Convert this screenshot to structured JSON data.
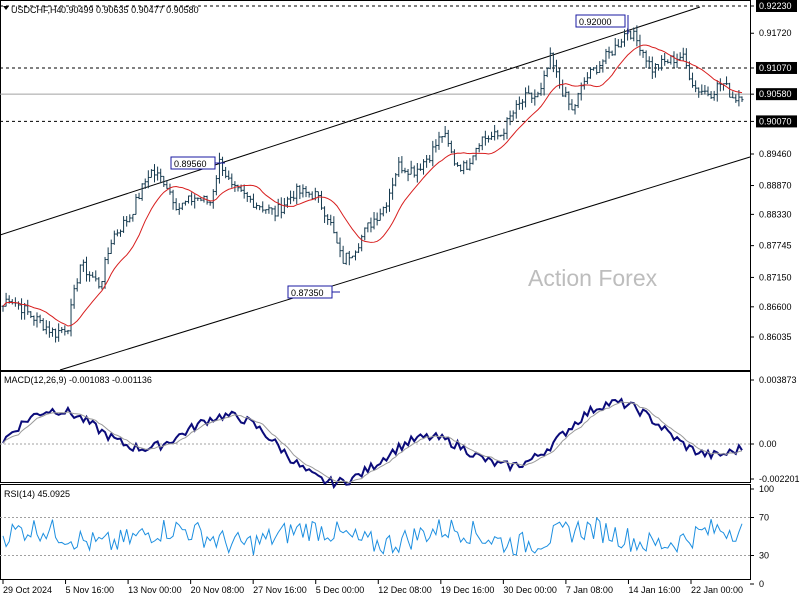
{
  "chart_header": {
    "symbol": "USDCHF,H4",
    "ohlc": "0.90499 0.90635 0.90477 0.90580"
  },
  "watermark": "Action Forex",
  "price_axis": {
    "ticks": [
      "0.92230",
      "0.91720",
      "0.91070",
      "0.90580",
      "0.90070",
      "0.89460",
      "0.88870",
      "0.88330",
      "0.87745",
      "0.87150",
      "0.86600",
      "0.86035"
    ],
    "highlighted": [
      "0.92230",
      "0.91070",
      "0.90580",
      "0.90070"
    ]
  },
  "levels": {
    "resistance_top": 0.9223,
    "resistance": 0.9107,
    "current": 0.9058,
    "support": 0.9007
  },
  "annotations": [
    "0.92000",
    "0.89560",
    "0.87350"
  ],
  "macd": {
    "label": "MACD(12,26,9) -0.001083 -0.001136",
    "ticks": [
      "0.003873",
      "0.00",
      "-0.002201"
    ]
  },
  "rsi": {
    "label": "RSI(14) 45.0925",
    "ticks": [
      "100",
      "70",
      "30",
      "0"
    ]
  },
  "time_axis": [
    "29 Oct 2024",
    "5 Nov 16:00",
    "13 Nov 00:00",
    "20 Nov 08:00",
    "27 Nov 16:00",
    "5 Dec 00:00",
    "12 Dec 08:00",
    "19 Dec 16:00",
    "30 Dec 00:00",
    "7 Jan 08:00",
    "14 Jan 16:00",
    "22 Jan 00:00"
  ],
  "chart_data": {
    "type": "line",
    "title": "USDCHF,H4",
    "series": [
      {
        "name": "USDCHF",
        "x": [
          "29 Oct 2024",
          "5 Nov 16:00",
          "13 Nov 00:00",
          "20 Nov 08:00",
          "27 Nov 16:00",
          "5 Dec 00:00",
          "12 Dec 08:00",
          "19 Dec 16:00",
          "30 Dec 00:00",
          "7 Jan 08:00",
          "14 Jan 16:00",
          "22 Jan 00:00"
        ],
        "values": [
          0.866,
          0.876,
          0.8915,
          0.8905,
          0.8845,
          0.8745,
          0.888,
          0.8935,
          0.9055,
          0.9165,
          0.9105,
          0.9058
        ]
      }
    ],
    "ylim": [
      0.86035,
      0.9223
    ]
  },
  "colors": {
    "candles": "#163a4f",
    "ma": "#d81f1f",
    "macd_line": "#0b0b7a",
    "signal": "#9a9a9a",
    "rsi": "#1d8fe0",
    "label_border": "#1a1aa0"
  }
}
